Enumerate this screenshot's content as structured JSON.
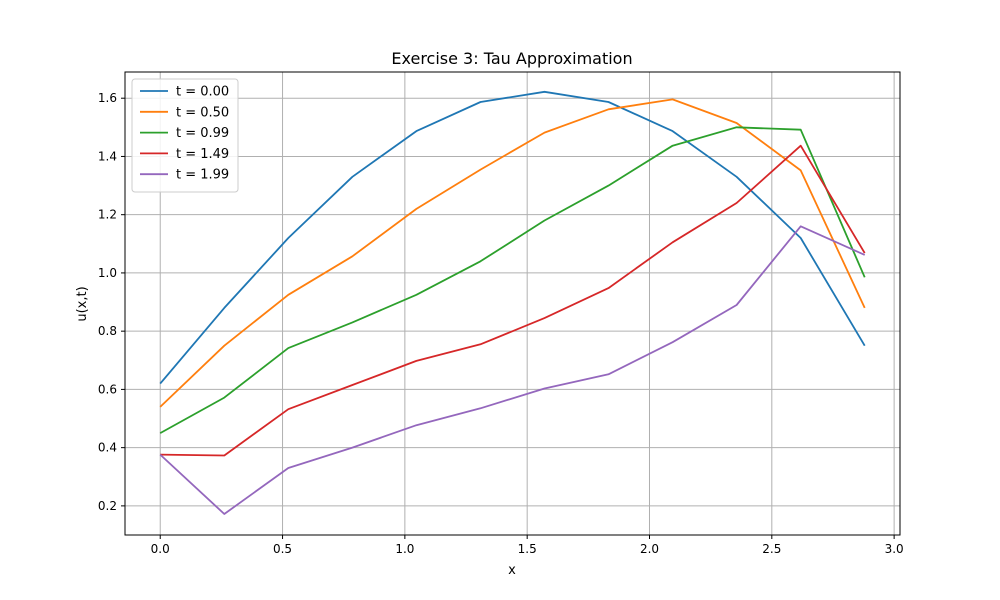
{
  "chart_data": {
    "type": "line",
    "title": "Exercise 3: Tau Approximation",
    "xlabel": "x",
    "ylabel": "u(x,t)",
    "xlim": [
      -0.144,
      3.024
    ],
    "ylim": [
      0.1,
      1.69
    ],
    "xticks": [
      "0.0",
      "0.5",
      "1.0",
      "1.5",
      "2.0",
      "2.5",
      "3.0"
    ],
    "yticks": [
      "0.2",
      "0.4",
      "0.6",
      "0.8",
      "1.0",
      "1.2",
      "1.4",
      "1.6"
    ],
    "grid": true,
    "legend_position": "top-left",
    "x": [
      0.0,
      0.2618,
      0.5236,
      0.7854,
      1.0472,
      1.309,
      1.5708,
      1.8326,
      2.0944,
      2.3562,
      2.618,
      2.8798
    ],
    "series": [
      {
        "name": "t = 0.00",
        "color": "#1f77b4",
        "values": [
          0.62,
          0.88,
          1.12,
          1.33,
          1.487,
          1.587,
          1.622,
          1.587,
          1.487,
          1.33,
          1.12,
          0.75
        ]
      },
      {
        "name": "t = 0.50",
        "color": "#ff7f0e",
        "values": [
          0.54,
          0.75,
          0.925,
          1.057,
          1.22,
          1.355,
          1.482,
          1.562,
          1.596,
          1.515,
          1.352,
          0.88
        ]
      },
      {
        "name": "t = 0.99",
        "color": "#2ca02c",
        "values": [
          0.45,
          0.572,
          0.742,
          0.83,
          0.925,
          1.04,
          1.18,
          1.3,
          1.437,
          1.5,
          1.492,
          0.985
        ]
      },
      {
        "name": "t = 1.49",
        "color": "#d62728",
        "values": [
          0.376,
          0.373,
          0.532,
          0.615,
          0.698,
          0.755,
          0.845,
          0.948,
          1.105,
          1.24,
          1.437,
          1.068
        ]
      },
      {
        "name": "t = 1.99",
        "color": "#9467bd",
        "values": [
          0.376,
          0.172,
          0.33,
          0.4,
          0.477,
          0.535,
          0.603,
          0.652,
          0.762,
          0.89,
          1.16,
          1.062
        ]
      }
    ]
  }
}
